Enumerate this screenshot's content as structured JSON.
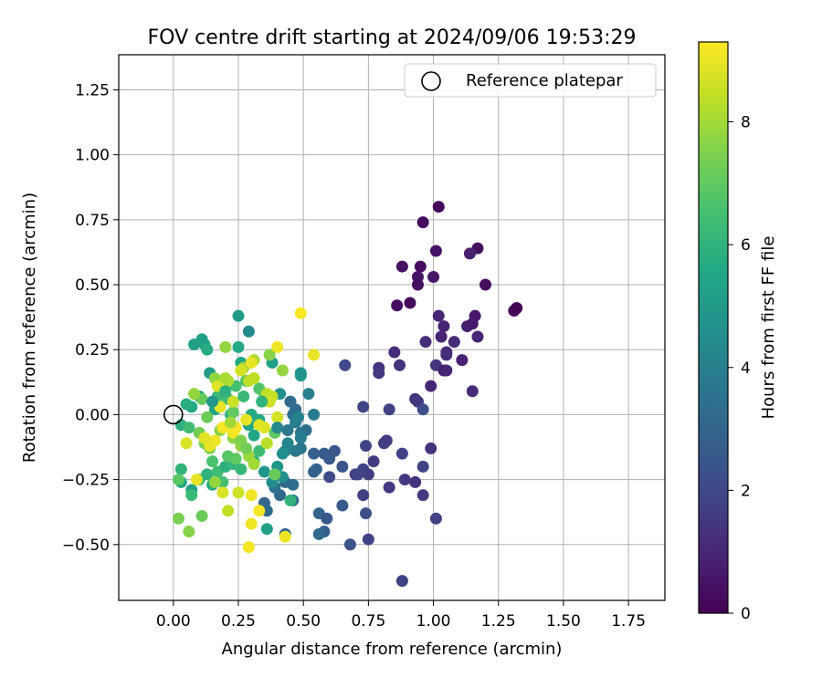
{
  "chart_data": {
    "type": "scatter",
    "title": "FOV centre drift starting at 2024/09/06 19:53:29",
    "xlabel": "Angular distance from reference (arcmin)",
    "ylabel": "Rotation from reference (arcmin)",
    "xlim": [
      -0.21,
      1.89
    ],
    "ylim": [
      -0.715,
      1.385
    ],
    "xticks": [
      0.0,
      0.25,
      0.5,
      0.75,
      1.0,
      1.25,
      1.5,
      1.75
    ],
    "xtick_labels": [
      "0.00",
      "0.25",
      "0.50",
      "0.75",
      "1.00",
      "1.25",
      "1.50",
      "1.75"
    ],
    "yticks": [
      -0.5,
      -0.25,
      0.0,
      0.25,
      0.5,
      0.75,
      1.0,
      1.25
    ],
    "ytick_labels": [
      "−0.50",
      "−0.25",
      "0.00",
      "0.25",
      "0.50",
      "0.75",
      "1.00",
      "1.25"
    ],
    "grid": true,
    "legend": {
      "position": "top-right",
      "entries": [
        "Reference platepar"
      ]
    },
    "reference_point": {
      "x": 0.0,
      "y": 0.0
    },
    "colorbar": {
      "label": "Hours from first FF file",
      "range": [
        0,
        9.3
      ],
      "ticks": [
        0,
        2,
        4,
        6,
        8
      ],
      "tick_labels": [
        "0",
        "2",
        "4",
        "6",
        "8"
      ],
      "colormap": "viridis"
    },
    "points": [
      [
        1.02,
        0.8,
        0.2
      ],
      [
        0.96,
        0.74,
        0.3
      ],
      [
        1.17,
        0.64,
        0.4
      ],
      [
        1.01,
        0.63,
        0.5
      ],
      [
        1.2,
        0.5,
        0.3
      ],
      [
        1.31,
        0.4,
        0.2
      ],
      [
        1.32,
        0.41,
        0.1
      ],
      [
        0.88,
        0.57,
        0.4
      ],
      [
        0.95,
        0.57,
        0.3
      ],
      [
        0.94,
        0.53,
        0.5
      ],
      [
        0.94,
        0.5,
        0.4
      ],
      [
        1.0,
        0.53,
        0.6
      ],
      [
        1.14,
        0.62,
        0.8
      ],
      [
        0.86,
        0.42,
        0.3
      ],
      [
        0.91,
        0.43,
        0.2
      ],
      [
        1.16,
        0.38,
        0.6
      ],
      [
        1.02,
        0.38,
        1.0
      ],
      [
        1.04,
        0.34,
        0.9
      ],
      [
        1.13,
        0.34,
        0.8
      ],
      [
        1.15,
        0.35,
        0.7
      ],
      [
        0.97,
        0.28,
        1.2
      ],
      [
        1.03,
        0.3,
        0.9
      ],
      [
        1.08,
        0.28,
        1.1
      ],
      [
        1.17,
        0.3,
        1.0
      ],
      [
        1.05,
        0.24,
        1.1
      ],
      [
        1.05,
        0.23,
        1.2
      ],
      [
        1.11,
        0.21,
        0.9
      ],
      [
        0.85,
        0.24,
        1.2
      ],
      [
        0.87,
        0.19,
        1.3
      ],
      [
        0.79,
        0.18,
        1.4
      ],
      [
        0.79,
        0.16,
        1.5
      ],
      [
        1.01,
        0.19,
        1.4
      ],
      [
        1.04,
        0.17,
        0.8
      ],
      [
        1.05,
        0.17,
        1.0
      ],
      [
        0.66,
        0.19,
        2.0
      ],
      [
        0.99,
        0.11,
        1.0
      ],
      [
        0.93,
        0.06,
        1.4
      ],
      [
        0.94,
        0.05,
        1.6
      ],
      [
        0.96,
        0.02,
        2.2
      ],
      [
        0.83,
        0.02,
        1.8
      ],
      [
        0.73,
        0.03,
        1.9
      ],
      [
        1.15,
        0.09,
        1.1
      ],
      [
        0.82,
        -0.1,
        1.6
      ],
      [
        0.81,
        -0.11,
        1.7
      ],
      [
        0.74,
        -0.12,
        1.9
      ],
      [
        0.77,
        -0.18,
        1.6
      ],
      [
        0.88,
        -0.15,
        1.8
      ],
      [
        0.99,
        -0.13,
        1.3
      ],
      [
        0.96,
        -0.2,
        1.9
      ],
      [
        0.89,
        -0.25,
        1.6
      ],
      [
        0.93,
        -0.26,
        1.3
      ],
      [
        0.96,
        -0.31,
        1.6
      ],
      [
        0.83,
        -0.28,
        1.5
      ],
      [
        0.73,
        -0.31,
        1.8
      ],
      [
        0.74,
        -0.38,
        2.2
      ],
      [
        0.73,
        -0.21,
        1.8
      ],
      [
        0.7,
        -0.23,
        1.6
      ],
      [
        0.71,
        -0.23,
        1.9
      ],
      [
        0.75,
        -0.23,
        1.7
      ],
      [
        1.01,
        -0.4,
        1.8
      ],
      [
        0.75,
        -0.48,
        1.8
      ],
      [
        0.68,
        -0.5,
        2.3
      ],
      [
        0.88,
        -0.64,
        1.8
      ],
      [
        0.65,
        -0.2,
        2.4
      ],
      [
        0.62,
        -0.14,
        2.5
      ],
      [
        0.6,
        -0.17,
        2.6
      ],
      [
        0.58,
        -0.15,
        2.7
      ],
      [
        0.6,
        -0.24,
        2.1
      ],
      [
        0.54,
        -0.15,
        2.9
      ],
      [
        0.55,
        -0.21,
        3.0
      ],
      [
        0.54,
        -0.22,
        2.9
      ],
      [
        0.56,
        -0.38,
        3.0
      ],
      [
        0.59,
        -0.4,
        2.6
      ],
      [
        0.65,
        -0.35,
        2.7
      ],
      [
        0.58,
        -0.45,
        2.8
      ],
      [
        0.56,
        -0.46,
        3.2
      ],
      [
        0.54,
        0.0,
        3.8
      ],
      [
        0.51,
        -0.06,
        3.4
      ],
      [
        0.49,
        -0.07,
        3.5
      ],
      [
        0.47,
        -0.03,
        3.9
      ],
      [
        0.46,
        0.0,
        3.5
      ],
      [
        0.45,
        0.05,
        3.2
      ],
      [
        0.52,
        0.08,
        4.0
      ],
      [
        0.49,
        -0.13,
        3.6
      ],
      [
        0.49,
        -0.09,
        3.9
      ],
      [
        0.47,
        -0.14,
        3.7
      ],
      [
        0.43,
        -0.14,
        4.0
      ],
      [
        0.44,
        -0.11,
        4.2
      ],
      [
        0.41,
        0.08,
        4.6
      ],
      [
        0.47,
        0.02,
        3.3
      ],
      [
        0.46,
        -0.27,
        3.4
      ],
      [
        0.46,
        -0.33,
        3.3
      ],
      [
        0.43,
        -0.26,
        3.1
      ],
      [
        0.41,
        -0.31,
        3.1
      ],
      [
        0.39,
        -0.28,
        3.5
      ],
      [
        0.35,
        -0.34,
        3.0
      ],
      [
        0.36,
        -0.37,
        3.2
      ],
      [
        0.43,
        -0.46,
        3.0
      ],
      [
        0.38,
        -0.26,
        4.5
      ],
      [
        0.4,
        -0.2,
        4.8
      ],
      [
        0.42,
        -0.24,
        4.6
      ],
      [
        0.35,
        -0.22,
        4.9
      ],
      [
        0.36,
        -0.44,
        5.2
      ],
      [
        0.45,
        -0.33,
        6.0
      ],
      [
        0.42,
        -0.15,
        4.6
      ],
      [
        0.29,
        0.32,
        4.4
      ],
      [
        0.25,
        0.38,
        5.0
      ],
      [
        0.38,
        0.2,
        5.2
      ],
      [
        0.26,
        0.2,
        5.5
      ],
      [
        0.25,
        0.26,
        5.6
      ],
      [
        0.49,
        0.15,
        5.0
      ],
      [
        0.49,
        0.16,
        4.8
      ],
      [
        0.14,
        0.16,
        5.0
      ],
      [
        0.12,
        0.27,
        5.4
      ],
      [
        0.11,
        0.29,
        5.2
      ],
      [
        0.08,
        0.27,
        5.3
      ],
      [
        0.13,
        0.25,
        5.7
      ],
      [
        0.16,
        0.02,
        5.5
      ],
      [
        0.1,
        0.07,
        5.3
      ],
      [
        0.07,
        0.03,
        5.6
      ],
      [
        0.05,
        0.04,
        5.8
      ],
      [
        0.03,
        -0.04,
        5.9
      ],
      [
        0.03,
        -0.21,
        6.0
      ],
      [
        0.03,
        -0.26,
        5.4
      ],
      [
        0.07,
        -0.29,
        5.3
      ],
      [
        0.07,
        -0.31,
        6.3
      ],
      [
        0.1,
        -0.25,
        6.2
      ],
      [
        0.13,
        -0.23,
        6.0
      ],
      [
        0.15,
        -0.27,
        5.8
      ],
      [
        0.19,
        -0.26,
        6.5
      ],
      [
        0.17,
        -0.22,
        6.4
      ],
      [
        0.2,
        -0.2,
        5.9
      ],
      [
        0.23,
        -0.19,
        6.1
      ],
      [
        0.26,
        -0.21,
        6.2
      ],
      [
        0.31,
        -0.18,
        5.8
      ],
      [
        0.33,
        -0.14,
        6.4
      ],
      [
        0.31,
        -0.08,
        5.5
      ],
      [
        0.29,
        -0.04,
        5.4
      ],
      [
        0.33,
        -0.02,
        5.6
      ],
      [
        0.3,
        0.0,
        5.7
      ],
      [
        0.22,
        0.0,
        6.0
      ],
      [
        0.18,
        0.03,
        6.2
      ],
      [
        0.17,
        0.07,
        6.3
      ],
      [
        0.21,
        0.06,
        6.4
      ],
      [
        0.24,
        0.11,
        6.5
      ],
      [
        0.28,
        0.13,
        6.6
      ],
      [
        0.33,
        0.1,
        6.7
      ],
      [
        0.36,
        0.06,
        6.8
      ],
      [
        0.35,
        0.08,
        6.9
      ],
      [
        0.23,
        0.01,
        7.0
      ],
      [
        0.11,
        0.06,
        7.1
      ],
      [
        0.13,
        -0.01,
        7.2
      ],
      [
        0.1,
        -0.07,
        7.3
      ],
      [
        0.12,
        -0.11,
        7.4
      ],
      [
        0.14,
        -0.13,
        7.5
      ],
      [
        0.18,
        -0.06,
        7.6
      ],
      [
        0.23,
        -0.09,
        7.7
      ],
      [
        0.26,
        -0.12,
        7.8
      ],
      [
        0.29,
        -0.16,
        7.9
      ],
      [
        0.31,
        -0.19,
        8.0
      ],
      [
        0.06,
        -0.05,
        6.4
      ],
      [
        0.02,
        -0.25,
        6.9
      ],
      [
        0.11,
        -0.39,
        7.2
      ],
      [
        0.06,
        -0.45,
        7.6
      ],
      [
        0.02,
        -0.4,
        7.4
      ],
      [
        0.16,
        -0.26,
        7.8
      ],
      [
        0.08,
        0.08,
        7.8
      ],
      [
        0.16,
        0.14,
        7.7
      ],
      [
        0.2,
        0.26,
        7.8
      ],
      [
        0.37,
        0.23,
        7.6
      ],
      [
        0.42,
        0.17,
        7.8
      ],
      [
        0.27,
        0.18,
        8.0
      ],
      [
        0.31,
        0.21,
        8.1
      ],
      [
        0.21,
        0.13,
        8.2
      ],
      [
        0.29,
        0.13,
        8.3
      ],
      [
        0.31,
        0.14,
        8.4
      ],
      [
        0.36,
        0.08,
        8.4
      ],
      [
        0.38,
        0.07,
        8.5
      ],
      [
        0.37,
        0.05,
        8.6
      ],
      [
        0.4,
        -0.01,
        8.7
      ],
      [
        0.35,
        -0.05,
        8.8
      ],
      [
        0.33,
        -0.04,
        8.9
      ],
      [
        0.28,
        -0.02,
        9.0
      ],
      [
        0.23,
        -0.07,
        9.1
      ],
      [
        0.24,
        -0.05,
        9.2
      ],
      [
        0.19,
        -0.05,
        9.2
      ],
      [
        0.16,
        -0.1,
        9.1
      ],
      [
        0.14,
        -0.12,
        9.0
      ],
      [
        0.12,
        -0.09,
        8.9
      ],
      [
        0.05,
        -0.11,
        8.8
      ],
      [
        0.09,
        -0.25,
        9.0
      ],
      [
        0.19,
        -0.3,
        8.8
      ],
      [
        0.21,
        -0.37,
        8.4
      ],
      [
        0.25,
        -0.3,
        8.6
      ],
      [
        0.3,
        -0.31,
        9.1
      ],
      [
        0.33,
        -0.37,
        9.2
      ],
      [
        0.3,
        -0.42,
        9.1
      ],
      [
        0.29,
        -0.51,
        9.2
      ],
      [
        0.43,
        -0.47,
        9.1
      ],
      [
        0.49,
        0.39,
        9.2
      ],
      [
        0.54,
        0.23,
        9.0
      ],
      [
        0.4,
        0.26,
        9.1
      ],
      [
        0.3,
        0.2,
        9.0
      ],
      [
        0.26,
        0.17,
        8.7
      ],
      [
        0.23,
        0.05,
        8.6
      ],
      [
        0.18,
        0.03,
        9.0
      ],
      [
        0.17,
        0.11,
        8.8
      ],
      [
        0.2,
        0.14,
        8.1
      ],
      [
        0.22,
        -0.03,
        8.0
      ],
      [
        0.26,
        -0.1,
        7.5
      ],
      [
        0.28,
        -0.13,
        7.3
      ],
      [
        0.24,
        -0.17,
        7.0
      ],
      [
        0.21,
        -0.16,
        6.8
      ],
      [
        0.15,
        -0.18,
        6.6
      ],
      [
        0.39,
        -0.23,
        7.1
      ],
      [
        0.36,
        -0.11,
        8.3
      ],
      [
        0.39,
        -0.07,
        7.0
      ],
      [
        0.34,
        0.05,
        6.0
      ],
      [
        0.27,
        0.07,
        6.2
      ],
      [
        0.2,
        0.09,
        5.9
      ],
      [
        0.15,
        0.05,
        4.9
      ],
      [
        0.4,
        -0.05,
        4.3
      ],
      [
        0.44,
        -0.06,
        3.7
      ],
      [
        0.48,
        -0.01,
        4.1
      ]
    ]
  }
}
